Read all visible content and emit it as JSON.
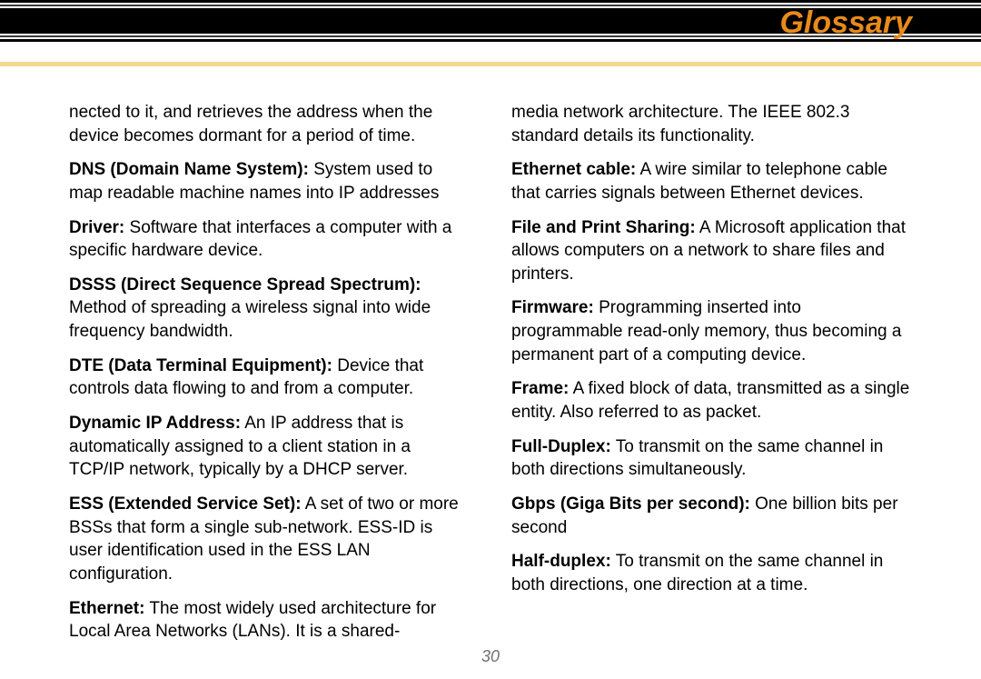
{
  "header": {
    "title": "Glossary",
    "title_color": "#e88a1a",
    "stripes": [
      {
        "h": 3,
        "c": "#000000"
      },
      {
        "h": 2,
        "c": "#ffffff"
      },
      {
        "h": 2,
        "c": "#3a3a3a"
      },
      {
        "h": 2,
        "c": "#ffffff"
      },
      {
        "h": 28,
        "c": "#000000"
      },
      {
        "h": 2,
        "c": "#ffffff"
      },
      {
        "h": 2,
        "c": "#3a3a3a"
      },
      {
        "h": 2,
        "c": "#ffffff"
      },
      {
        "h": 3,
        "c": "#000000"
      },
      {
        "h": 22,
        "c": "#ffffff"
      },
      {
        "h": 5,
        "c": "#f6d98f"
      }
    ]
  },
  "left": [
    {
      "term": "",
      "def": "nected to it, and retrieves the address when the device becomes dormant for a period of time."
    },
    {
      "term": "DNS (Domain Name System):",
      "def": "  System used to map readable machine names into IP addresses"
    },
    {
      "term": "Driver:",
      "def": "  Software that interfaces a computer with a specific hardware device."
    },
    {
      "term": "DSSS (Direct Sequence Spread Spectrum):",
      "def": "  Method of spreading a wireless signal into wide frequency bandwidth."
    },
    {
      "term": "DTE (Data Terminal Equipment):",
      "def": "  Device that controls data flowing to and from a computer."
    },
    {
      "term": "Dynamic IP Address:",
      "def": "  An IP address that is automatically assigned to a client station in a TCP/IP network, typically by a DHCP server."
    },
    {
      "term": "ESS (Extended Service Set):",
      "def": "  A set of two or more BSSs that form a single sub-network. ESS-ID is user identification used in the ESS LAN configuration."
    },
    {
      "term": "Ethernet:",
      "def": " The most widely used architecture for Local Area Networks (LANs). It is a shared-"
    }
  ],
  "right": [
    {
      "term": "",
      "def": "media network architecture. The IEEE 802.3 standard details its functionality."
    },
    {
      "term": "Ethernet cable:",
      "def": " A wire similar to telephone cable that carries signals between Ethernet devices."
    },
    {
      "term": "File and Print Sharing:",
      "def": " A Microsoft application that allows computers on a network to share files and printers."
    },
    {
      "term": "Firmware:",
      "def": " Programming  inserted into programmable read-only memory, thus becoming a permanent part of a computing device."
    },
    {
      "term": "Frame:",
      "def": " A fixed block of data, transmitted as a single entity.  Also referred to as packet."
    },
    {
      "term": "Full-Duplex:",
      "def": "  To transmit on the same channel in both directions simultaneously."
    },
    {
      "term": "Gbps (Giga Bits per second):",
      "def": "  One billion bits per second"
    },
    {
      "term": "Half-duplex:",
      "def": " To transmit on the same channel in both directions, one direction at a time."
    }
  ],
  "page_number": "30"
}
